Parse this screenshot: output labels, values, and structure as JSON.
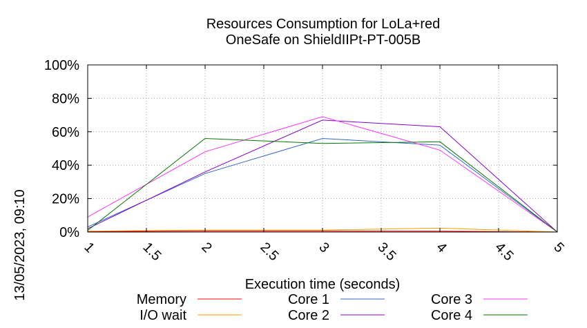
{
  "chart_data": {
    "type": "line",
    "title": "Resources Consumption for LoLa+red",
    "subtitle": "OneSafe on ShieldIIPt-PT-005B",
    "xlabel": "Execution time (seconds)",
    "ylabel": "",
    "side_label": "13/05/2023, 09:10",
    "xlim": [
      1,
      5
    ],
    "ylim": [
      0,
      100
    ],
    "x_ticks": [
      "1",
      "1.5",
      "2",
      "2.5",
      "3",
      "3.5",
      "4",
      "4.5",
      "5"
    ],
    "y_ticks": [
      "0%",
      "20%",
      "40%",
      "60%",
      "80%",
      "100%"
    ],
    "grid": true,
    "legend_position": "bottom",
    "x": [
      1,
      2,
      3,
      4,
      5
    ],
    "series": [
      {
        "name": "Memory",
        "color": "#ff0000",
        "values": [
          0.3,
          0.6,
          0.6,
          0.5,
          0
        ]
      },
      {
        "name": "I/O wait",
        "color": "#ff9900",
        "values": [
          0.5,
          1.2,
          1.2,
          2.3,
          0
        ]
      },
      {
        "name": "Core 1",
        "color": "#3366cc",
        "values": [
          3,
          35,
          56,
          52,
          0
        ]
      },
      {
        "name": "Core 2",
        "color": "#8800cc",
        "values": [
          2,
          36,
          67,
          63,
          0
        ]
      },
      {
        "name": "Core 3",
        "color": "#ff33ff",
        "values": [
          9,
          48,
          69,
          49,
          0
        ]
      },
      {
        "name": "Core 4",
        "color": "#007700",
        "values": [
          1,
          56,
          53,
          54,
          0
        ]
      }
    ]
  }
}
